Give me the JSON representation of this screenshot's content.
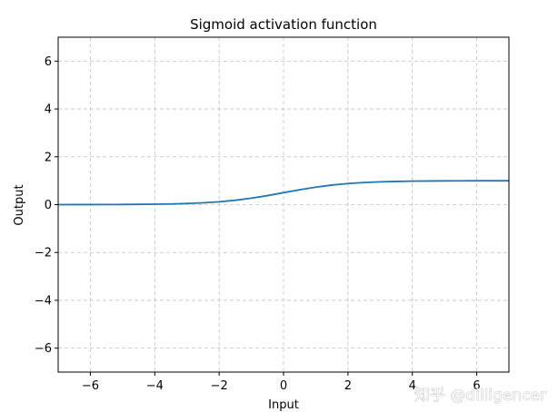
{
  "chart_data": {
    "type": "line",
    "title": "Sigmoid activation function",
    "xlabel": "Input",
    "ylabel": "Output",
    "xlim": [
      -7,
      7
    ],
    "ylim": [
      -7,
      7
    ],
    "xticks": [
      -6,
      -4,
      -2,
      0,
      2,
      4,
      6
    ],
    "yticks": [
      -6,
      -4,
      -2,
      0,
      2,
      4,
      6
    ],
    "xtick_labels": [
      "−6",
      "−4",
      "−2",
      "0",
      "2",
      "4",
      "6"
    ],
    "ytick_labels": [
      "−6",
      "−4",
      "−2",
      "0",
      "2",
      "4",
      "6"
    ],
    "grid": true,
    "series": [
      {
        "color": "#1f77b4",
        "x": [
          -7,
          -6.5,
          -6,
          -5.5,
          -5,
          -4.5,
          -4,
          -3.5,
          -3,
          -2.5,
          -2,
          -1.5,
          -1,
          -0.5,
          0,
          0.5,
          1,
          1.5,
          2,
          2.5,
          3,
          3.5,
          4,
          4.5,
          5,
          5.5,
          6,
          6.5,
          7
        ],
        "y": [
          0.0009,
          0.0015,
          0.0025,
          0.0041,
          0.0067,
          0.011,
          0.018,
          0.0293,
          0.0474,
          0.0759,
          0.1192,
          0.1824,
          0.2689,
          0.3775,
          0.5,
          0.6225,
          0.7311,
          0.8176,
          0.8808,
          0.9241,
          0.9526,
          0.9707,
          0.982,
          0.989,
          0.9933,
          0.9959,
          0.9975,
          0.9985,
          0.9991
        ]
      }
    ]
  },
  "watermark": "知乎 @dilligencer"
}
